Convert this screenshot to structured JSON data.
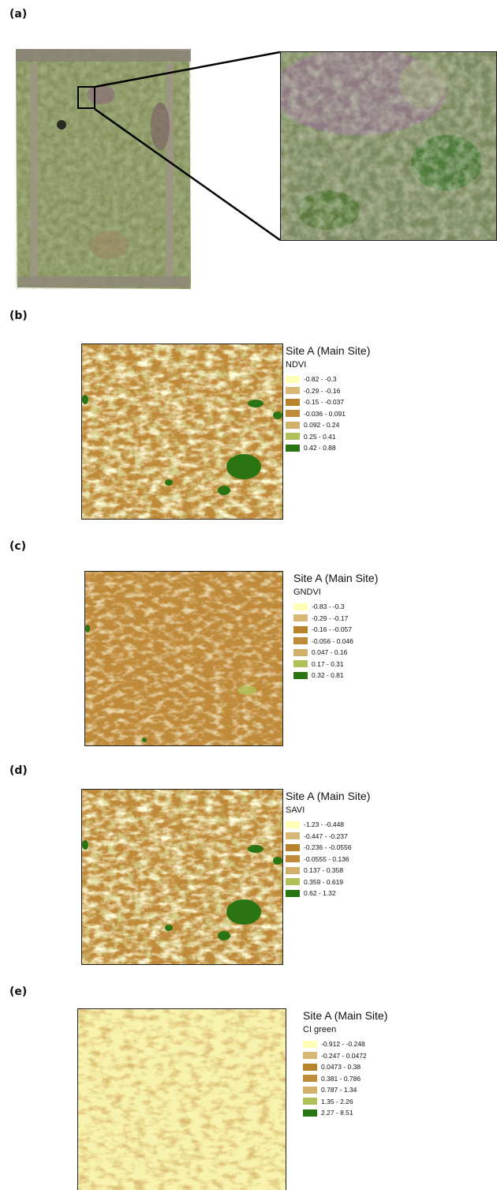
{
  "panels": [
    {
      "id": "a",
      "label": "(a)"
    },
    {
      "id": "b",
      "label": "(b)",
      "site": "Site A (Main Site)",
      "index": "NDVI",
      "classes": [
        {
          "range": "-0.82 - -0.3",
          "color": "#fefeb4"
        },
        {
          "range": "-0.29 - -0.16",
          "color": "#d8b877"
        },
        {
          "range": "-0.15 - -0.037",
          "color": "#b7832b"
        },
        {
          "range": "-0.036 - 0.091",
          "color": "#bf8a3a"
        },
        {
          "range": "0.092 - 0.24",
          "color": "#d1b16a"
        },
        {
          "range": "0.25 - 0.41",
          "color": "#b2c05a"
        },
        {
          "range": "0.42 - 0.88",
          "color": "#2a7414"
        }
      ]
    },
    {
      "id": "c",
      "label": "(c)",
      "site": "Site A (Main Site)",
      "index": "GNDVI",
      "classes": [
        {
          "range": "-0.83 - -0.3",
          "color": "#fefeb4"
        },
        {
          "range": "-0.29 - -0.17",
          "color": "#d8b877"
        },
        {
          "range": "-0.16 - -0.057",
          "color": "#b7832b"
        },
        {
          "range": "-0.056 - 0.046",
          "color": "#bf8a3a"
        },
        {
          "range": "0.047 - 0.16",
          "color": "#d1b16a"
        },
        {
          "range": "0.17 - 0.31",
          "color": "#b2c05a"
        },
        {
          "range": "0.32 - 0.81",
          "color": "#2a7414"
        }
      ]
    },
    {
      "id": "d",
      "label": "(d)",
      "site": "Site A (Main Site)",
      "index": "SAVI",
      "classes": [
        {
          "range": "-1.23 - -0.448",
          "color": "#fefeb4"
        },
        {
          "range": "-0.447 - -0.237",
          "color": "#d8b877"
        },
        {
          "range": "-0.236 - -0.0556",
          "color": "#b7832b"
        },
        {
          "range": "-0.0555 - 0.136",
          "color": "#bf8a3a"
        },
        {
          "range": "0.137 - 0.358",
          "color": "#d1b16a"
        },
        {
          "range": "0.359 - 0.619",
          "color": "#b2c05a"
        },
        {
          "range": "0.62 - 1.32",
          "color": "#2a7414"
        }
      ]
    },
    {
      "id": "e",
      "label": "(e)",
      "site": "Site A (Main Site)",
      "index": "CI green",
      "classes": [
        {
          "range": "-0.912 - -0.248",
          "color": "#fefeb4"
        },
        {
          "range": "-0.247 - 0.0472",
          "color": "#d8b877"
        },
        {
          "range": "0.0473 - 0.38",
          "color": "#b7832b"
        },
        {
          "range": "0.381 - 0.786",
          "color": "#bf8a3a"
        },
        {
          "range": "0.787 - 1.34",
          "color": "#d1b16a"
        },
        {
          "range": "1.35 - 2.26",
          "color": "#b2c05a"
        },
        {
          "range": "2.27 - 8.51",
          "color": "#2a7414"
        }
      ]
    }
  ]
}
